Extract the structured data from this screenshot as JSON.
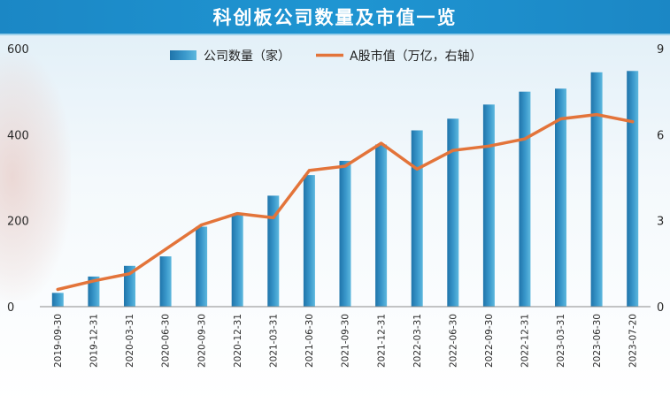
{
  "title": "科创板公司数量及市值一览",
  "chart_data": {
    "type": "bar",
    "title": "科创板公司数量及市值一览",
    "categories": [
      "2019-09-30",
      "2019-12-31",
      "2020-03-31",
      "2020-06-30",
      "2020-09-30",
      "2020-12-31",
      "2021-03-31",
      "2021-06-30",
      "2021-09-30",
      "2021-12-31",
      "2022-03-31",
      "2022-06-30",
      "2022-09-30",
      "2022-12-31",
      "2023-03-31",
      "2023-06-30",
      "2023-07-20"
    ],
    "series": [
      {
        "name": "公司数量（家）",
        "type": "bar",
        "axis": "left",
        "color": "#2f89bd",
        "values": [
          32,
          70,
          95,
          117,
          186,
          215,
          258,
          306,
          339,
          377,
          410,
          437,
          470,
          500,
          507,
          545,
          548
        ]
      },
      {
        "name": "A股市值（万亿，右轴）",
        "type": "line",
        "axis": "right",
        "color": "#e3743a",
        "values": [
          0.6,
          0.9,
          1.15,
          2.0,
          2.85,
          3.25,
          3.1,
          4.75,
          4.9,
          5.7,
          4.8,
          5.45,
          5.6,
          5.85,
          6.55,
          6.7,
          6.45
        ]
      }
    ],
    "ylim_left": [
      0,
      600
    ],
    "ylim_right": [
      0,
      9
    ],
    "yticks_left": [
      "0",
      "200",
      "400",
      "600"
    ],
    "yticks_right": [
      "0",
      "3",
      "6",
      "9"
    ],
    "grid": false,
    "legend_position": "top-center"
  }
}
